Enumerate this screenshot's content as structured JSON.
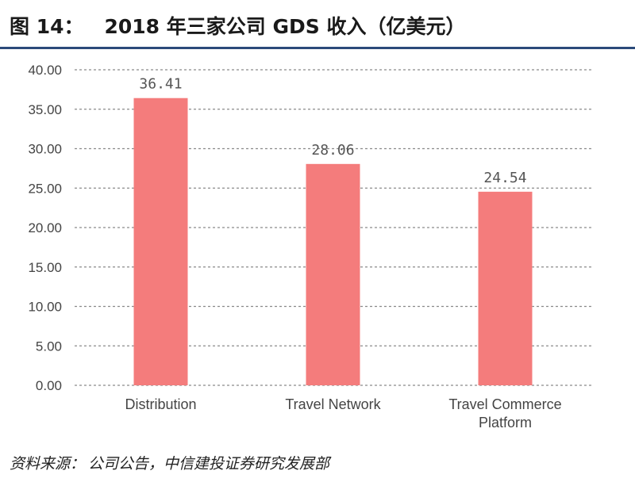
{
  "header": {
    "figure_label": "图 14：",
    "title": "2018 年三家公司 GDS 收入（亿美元）"
  },
  "footer": {
    "source_label": "资料来源：",
    "source_text": "公司公告，中信建投证券研究发展部"
  },
  "colors": {
    "bar": "#f47c7c",
    "grid": "#8a8a8a",
    "header_rule": "#2b4a7a"
  },
  "chart_data": {
    "type": "bar",
    "title": "2018 年三家公司 GDS 收入（亿美元）",
    "xlabel": "",
    "ylabel": "",
    "categories": [
      [
        "Distribution"
      ],
      [
        "Travel Network"
      ],
      [
        "Travel Commerce",
        "Platform"
      ]
    ],
    "values": [
      36.41,
      28.06,
      24.54
    ],
    "value_labels": [
      "36.41",
      "28.06",
      "24.54"
    ],
    "ylim": [
      0,
      40
    ],
    "yticks": [
      "0.00",
      "5.00",
      "10.00",
      "15.00",
      "20.00",
      "25.00",
      "30.00",
      "35.00",
      "40.00"
    ],
    "grid": true,
    "grid_style": "dashed",
    "legend": "none"
  }
}
